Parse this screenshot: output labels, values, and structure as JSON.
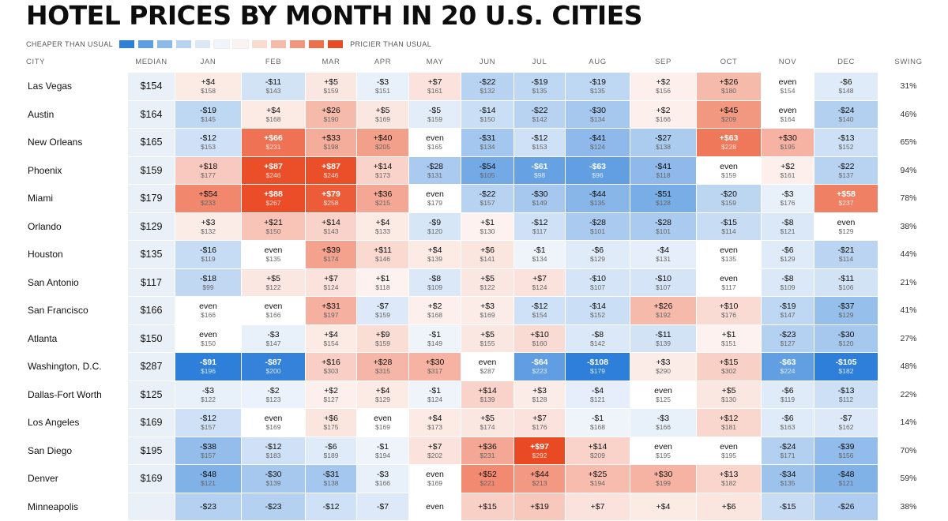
{
  "title": "HOTEL PRICES BY MONTH IN 20 U.S. CITIES",
  "legend": {
    "left_label": "CHEAPER THAN USUAL",
    "right_label": "PRICIER THAN USUAL",
    "swatches": [
      "#2e7fd9",
      "#5c9de3",
      "#8bbaea",
      "#b6d3f1",
      "#d9e7f7",
      "#f1f5fb",
      "#fbf3f1",
      "#f8dcd3",
      "#f6bba8",
      "#f3967b",
      "#ef6f4d",
      "#ea4a23"
    ]
  },
  "headers": {
    "city": "CITY",
    "median": "MEDIAN",
    "months": [
      "JAN",
      "FEB",
      "MAR",
      "APR",
      "MAY",
      "JUN",
      "JUL",
      "AUG",
      "SEP",
      "OCT",
      "NOV",
      "DEC"
    ],
    "swing": "SWING"
  },
  "chart_data": {
    "type": "heatmap",
    "title": "HOTEL PRICES BY MONTH IN 20 U.S. CITIES",
    "columns": [
      "JAN",
      "FEB",
      "MAR",
      "APR",
      "MAY",
      "JUN",
      "JUL",
      "AUG",
      "SEP",
      "OCT",
      "NOV",
      "DEC"
    ],
    "rows": [
      {
        "city": "Las Vegas",
        "median": "$154",
        "prices": [
          158,
          143,
          159,
          151,
          161,
          132,
          135,
          135,
          156,
          180,
          154,
          148
        ],
        "swing": "31%"
      },
      {
        "city": "Austin",
        "median": "$164",
        "prices": [
          145,
          168,
          190,
          169,
          159,
          150,
          142,
          134,
          166,
          209,
          164,
          140
        ],
        "swing": "46%"
      },
      {
        "city": "New Orleans",
        "median": "$165",
        "prices": [
          153,
          231,
          198,
          205,
          165,
          134,
          153,
          124,
          138,
          228,
          195,
          152
        ],
        "swing": "65%"
      },
      {
        "city": "Phoenix",
        "median": "$159",
        "prices": [
          177,
          246,
          246,
          173,
          131,
          105,
          98,
          96,
          118,
          159,
          161,
          137
        ],
        "swing": "94%"
      },
      {
        "city": "Miami",
        "median": "$179",
        "prices": [
          233,
          267,
          258,
          215,
          179,
          157,
          149,
          135,
          128,
          159,
          176,
          237
        ],
        "swing": "78%"
      },
      {
        "city": "Orlando",
        "median": "$129",
        "prices": [
          132,
          150,
          143,
          133,
          120,
          130,
          117,
          101,
          101,
          114,
          121,
          129
        ],
        "swing": "38%"
      },
      {
        "city": "Houston",
        "median": "$135",
        "prices": [
          119,
          135,
          174,
          146,
          139,
          141,
          134,
          129,
          131,
          135,
          129,
          114
        ],
        "swing": "44%"
      },
      {
        "city": "San Antonio",
        "median": "$117",
        "prices": [
          99,
          122,
          124,
          118,
          109,
          122,
          124,
          107,
          107,
          117,
          109,
          106
        ],
        "swing": "21%"
      },
      {
        "city": "San Francisco",
        "median": "$166",
        "prices": [
          166,
          166,
          197,
          159,
          168,
          169,
          154,
          152,
          192,
          176,
          147,
          129
        ],
        "swing": "41%"
      },
      {
        "city": "Atlanta",
        "median": "$150",
        "prices": [
          150,
          147,
          154,
          159,
          149,
          155,
          160,
          142,
          139,
          151,
          127,
          120
        ],
        "swing": "27%"
      },
      {
        "city": "Washington, D.C.",
        "median": "$287",
        "prices": [
          196,
          200,
          303,
          315,
          317,
          287,
          223,
          179,
          290,
          302,
          224,
          182
        ],
        "swing": "48%"
      },
      {
        "city": "Dallas-Fort Worth",
        "median": "$125",
        "prices": [
          122,
          123,
          127,
          129,
          124,
          139,
          128,
          121,
          125,
          130,
          119,
          112
        ],
        "swing": "22%"
      },
      {
        "city": "Los Angeles",
        "median": "$169",
        "prices": [
          157,
          169,
          175,
          169,
          173,
          174,
          176,
          168,
          166,
          181,
          163,
          162
        ],
        "swing": "14%"
      },
      {
        "city": "San Diego",
        "median": "$195",
        "prices": [
          157,
          183,
          189,
          194,
          202,
          231,
          292,
          209,
          195,
          195,
          171,
          156
        ],
        "swing": "70%"
      },
      {
        "city": "Denver",
        "median": "$169",
        "prices": [
          121,
          139,
          138,
          166,
          169,
          221,
          213,
          194,
          199,
          182,
          135,
          121
        ],
        "swing": "59%"
      }
    ],
    "partial_row": {
      "city": "Minneapolis",
      "diffs": [
        -23,
        -23,
        -12,
        -7,
        0,
        15,
        19,
        7,
        4,
        6,
        -15,
        -26
      ],
      "swing": "38%"
    }
  }
}
